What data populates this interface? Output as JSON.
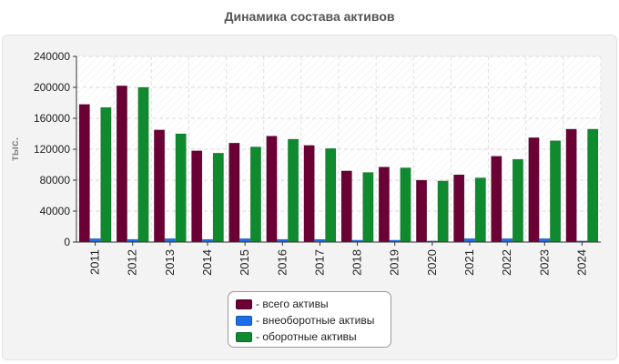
{
  "chart_data": {
    "type": "bar",
    "title": "Динамика состава активов",
    "ylabel": "тыс.",
    "xlabel": "",
    "ylim": [
      0,
      240000
    ],
    "yticks": [
      0,
      40000,
      80000,
      120000,
      160000,
      200000,
      240000
    ],
    "grid": true,
    "legend_position": "bottom",
    "categories": [
      "2011",
      "2012",
      "2013",
      "2014",
      "2015",
      "2016",
      "2017",
      "2018",
      "2019",
      "2020",
      "2021",
      "2022",
      "2023",
      "2024"
    ],
    "series": [
      {
        "name": "- всего активы",
        "color": "#6b0035",
        "values": [
          178000,
          202000,
          145000,
          118000,
          128000,
          137000,
          125000,
          92000,
          97000,
          80000,
          87000,
          111000,
          135000,
          146000
        ]
      },
      {
        "name": "- внеоборотные активы",
        "color": "#1a6fe8",
        "values": [
          4500,
          3500,
          4500,
          3500,
          4500,
          3500,
          3500,
          2500,
          2500,
          1500,
          4500,
          4500,
          4500,
          1500
        ]
      },
      {
        "name": "- оборотные активы",
        "color": "#0f8a2e",
        "values": [
          174000,
          200000,
          140000,
          115000,
          123000,
          133000,
          121000,
          90000,
          96000,
          79000,
          83000,
          107000,
          131000,
          146000
        ]
      }
    ]
  }
}
